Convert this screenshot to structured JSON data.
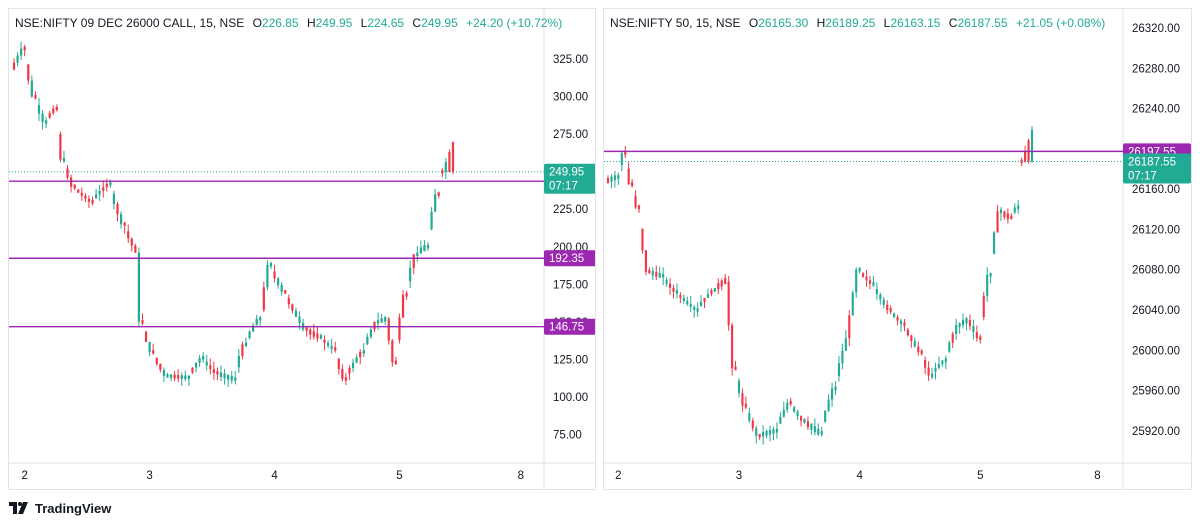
{
  "colors": {
    "up": "#22ab94",
    "down": "#f23645",
    "level": "#9c27b0",
    "badge_text": "#ffffff"
  },
  "branding": {
    "name": "TradingView",
    "logo_icon": "tradingview-logo-icon"
  },
  "charts": [
    {
      "legend": {
        "symbol": "NSE:NIFTY 09 DEC 26000 CALL, 15, NSE",
        "o": "226.85",
        "h": "249.95",
        "l": "224.65",
        "c": "249.95",
        "change": "+24.20 (+10.72%)"
      },
      "chart_data": {
        "type": "candlestick",
        "y_ticks": [
          "325.00",
          "300.00",
          "275.00",
          "250.00",
          "225.00",
          "200.00",
          "175.00",
          "150.00",
          "125.00",
          "100.00",
          "75.00"
        ],
        "y_range": [
          60,
          345
        ],
        "x_ticks": [
          "2",
          "3",
          "4",
          "5",
          "8"
        ],
        "last_price": {
          "label": "249.95",
          "value": 249.95,
          "countdown": "07:17"
        },
        "levels": [
          {
            "label": "243.65",
            "value": 243.65
          },
          {
            "label": "192.35",
            "value": 192.35
          },
          {
            "label": "146.75",
            "value": 146.75
          }
        ],
        "day_groups": [
          {
            "count": 35,
            "keys": [
              [
                0,
                318,
                "down"
              ],
              [
                3,
                332,
                "down"
              ],
              [
                6,
                300,
                "down"
              ],
              [
                9,
                283,
                "down"
              ],
              [
                12,
                292,
                "down"
              ],
              [
                14,
                258,
                "down"
              ],
              [
                17,
                240,
                "down"
              ],
              [
                22,
                230,
                "down"
              ],
              [
                27,
                242,
                "down"
              ],
              [
                31,
                215,
                "down"
              ],
              [
                35,
                196,
                "down"
              ]
            ]
          },
          {
            "count": 35,
            "keys": [
              [
                0,
                196,
                "down"
              ],
              [
                1,
                150,
                "down"
              ],
              [
                4,
                130,
                "down"
              ],
              [
                8,
                114,
                "down"
              ],
              [
                14,
                113,
                "up"
              ],
              [
                18,
                126,
                "up"
              ],
              [
                22,
                116,
                "down"
              ],
              [
                27,
                112,
                "up"
              ],
              [
                30,
                135,
                "up"
              ],
              [
                34,
                152,
                "up"
              ],
              [
                35,
                158,
                "up"
              ]
            ]
          },
          {
            "count": 35,
            "keys": [
              [
                0,
                158,
                "up"
              ],
              [
                2,
                188,
                "up"
              ],
              [
                6,
                170,
                "down"
              ],
              [
                12,
                145,
                "down"
              ],
              [
                16,
                140,
                "down"
              ],
              [
                20,
                132,
                "down"
              ],
              [
                23,
                112,
                "down"
              ],
              [
                28,
                130,
                "up"
              ],
              [
                32,
                150,
                "up"
              ],
              [
                35,
                152,
                "up"
              ]
            ]
          },
          {
            "count": 19,
            "keys": [
              [
                0,
                152,
                "up"
              ],
              [
                2,
                123,
                "down"
              ],
              [
                5,
                168,
                "up"
              ],
              [
                8,
                195,
                "up"
              ],
              [
                11,
                200,
                "up"
              ],
              [
                14,
                235,
                "up"
              ],
              [
                15,
                249.95,
                "up"
              ]
            ]
          }
        ]
      }
    },
    {
      "legend": {
        "symbol": "NSE:NIFTY 50, 15, NSE",
        "o": "26165.30",
        "h": "26189.25",
        "l": "26163.15",
        "c": "26187.55",
        "change": "+21.05 (+0.08%)"
      },
      "chart_data": {
        "type": "candlestick",
        "y_ticks": [
          "26320.00",
          "26280.00",
          "26240.00",
          "26200.00",
          "26160.00",
          "26120.00",
          "26080.00",
          "26040.00",
          "26000.00",
          "25960.00",
          "25920.00"
        ],
        "y_range": [
          25888,
          26337
        ],
        "x_ticks": [
          "2",
          "3",
          "4",
          "5",
          "8"
        ],
        "last_price": {
          "label": "26187.55",
          "value": 26187.55,
          "countdown": "07:17"
        },
        "levels": [
          {
            "label": "26197.55",
            "value": 26197.55
          }
        ],
        "day_groups": [
          {
            "count": 35,
            "keys": [
              [
                0,
                26168,
                "up"
              ],
              [
                3,
                26172,
                "up"
              ],
              [
                5,
                26196,
                "up"
              ],
              [
                7,
                26165,
                "down"
              ],
              [
                9,
                26142,
                "down"
              ],
              [
                12,
                26078,
                "down"
              ],
              [
                16,
                26074,
                "up"
              ],
              [
                20,
                26058,
                "down"
              ],
              [
                26,
                26040,
                "down"
              ],
              [
                31,
                26060,
                "up"
              ],
              [
                35,
                26070,
                "up"
              ]
            ]
          },
          {
            "count": 35,
            "keys": [
              [
                0,
                26068,
                "up"
              ],
              [
                2,
                25982,
                "down"
              ],
              [
                5,
                25945,
                "down"
              ],
              [
                9,
                25915,
                "down"
              ],
              [
                14,
                25920,
                "up"
              ],
              [
                18,
                25948,
                "up"
              ],
              [
                22,
                25930,
                "down"
              ],
              [
                27,
                25918,
                "up"
              ],
              [
                31,
                25962,
                "up"
              ],
              [
                35,
                26012,
                "up"
              ]
            ]
          },
          {
            "count": 35,
            "keys": [
              [
                0,
                26012,
                "up"
              ],
              [
                3,
                26080,
                "up"
              ],
              [
                7,
                26066,
                "down"
              ],
              [
                12,
                26040,
                "down"
              ],
              [
                16,
                26026,
                "down"
              ],
              [
                21,
                25998,
                "down"
              ],
              [
                24,
                25975,
                "down"
              ],
              [
                28,
                25990,
                "up"
              ],
              [
                32,
                26025,
                "up"
              ],
              [
                35,
                26030,
                "up"
              ]
            ]
          },
          {
            "count": 19,
            "keys": [
              [
                0,
                26030,
                "up"
              ],
              [
                3,
                26012,
                "down"
              ],
              [
                6,
                26075,
                "up"
              ],
              [
                9,
                26138,
                "up"
              ],
              [
                12,
                26132,
                "down"
              ],
              [
                14,
                26142,
                "up"
              ],
              [
                15,
                26187.55,
                "up"
              ]
            ]
          }
        ]
      }
    }
  ]
}
